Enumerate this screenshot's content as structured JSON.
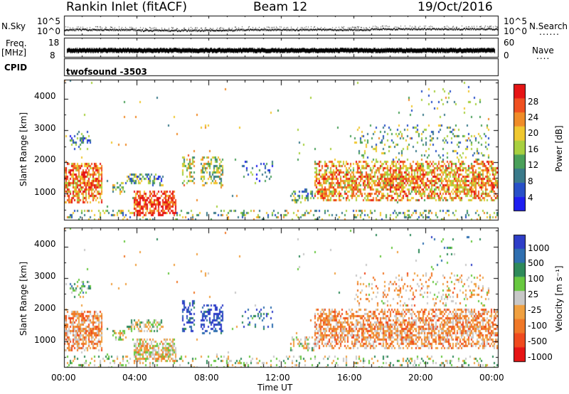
{
  "header": {
    "station": "Rankin Inlet (fitACF)",
    "beam": "Beam 12",
    "date": "19/Oct/2016"
  },
  "strips": {
    "nsky": {
      "label": "N.Sky",
      "right_label": "N.Search",
      "right_dots": "......",
      "ticks": [
        "10^5",
        "10^0"
      ],
      "right_ticks": [
        "10^5",
        "10^0"
      ]
    },
    "freq": {
      "label_line1": "Freq.",
      "label_line2": "[MHz]",
      "right_label": "Nave",
      "right_dots": "....",
      "ticks": [
        "18",
        "8"
      ],
      "right_ticks": [
        "60",
        "0"
      ]
    },
    "cpid": {
      "label": "CPID",
      "program": "twofsound -3503"
    }
  },
  "colors": {
    "power_scale": [
      "#1e1ef0",
      "#2850c8",
      "#3a7a8a",
      "#4aa05a",
      "#a8d040",
      "#f0c830",
      "#f08c28",
      "#f05020",
      "#e61414"
    ],
    "velocity_scale": [
      "#2e3ec8",
      "#2f6fb0",
      "#2e8a5a",
      "#68c840",
      "#c8c8c8",
      "#f0a040",
      "#f07828",
      "#f04a1e",
      "#e61414"
    ]
  },
  "chart_data": [
    {
      "type": "heatmap",
      "title": "Power",
      "x": {
        "label": "",
        "range": [
          0,
          24
        ],
        "ticks": [
          "00:00",
          "04:00",
          "08:00",
          "12:00",
          "16:00",
          "20:00",
          "00:00"
        ]
      },
      "y": {
        "label": "Slant Range [km]",
        "range": [
          180,
          4600
        ],
        "ticks": [
          "1000",
          "2000",
          "3000",
          "4000"
        ],
        "tick_values": [
          1000,
          2000,
          3000,
          4000
        ]
      },
      "colorbar": {
        "label": "Power [dB]",
        "range": [
          0,
          30
        ],
        "ticks": [
          "4",
          "8",
          "12",
          "16",
          "20",
          "24",
          "28"
        ],
        "tick_values": [
          4,
          8,
          12,
          16,
          20,
          24,
          28
        ]
      }
    },
    {
      "type": "heatmap",
      "title": "Velocity",
      "x": {
        "label": "Time UT",
        "range": [
          0,
          24
        ],
        "ticks": [
          "00:00",
          "04:00",
          "08:00",
          "12:00",
          "16:00",
          "20:00",
          "00:00"
        ]
      },
      "y": {
        "label": "Slant Range [km]",
        "range": [
          180,
          4600
        ],
        "ticks": [
          "1000",
          "2000",
          "3000",
          "4000"
        ],
        "tick_values": [
          1000,
          2000,
          3000,
          4000
        ]
      },
      "colorbar": {
        "label": "Velocity [m s⁻¹]",
        "ticks": [
          "1000",
          "500",
          "100",
          "25",
          "-25",
          "-100",
          "-500",
          "-1000"
        ]
      }
    }
  ]
}
